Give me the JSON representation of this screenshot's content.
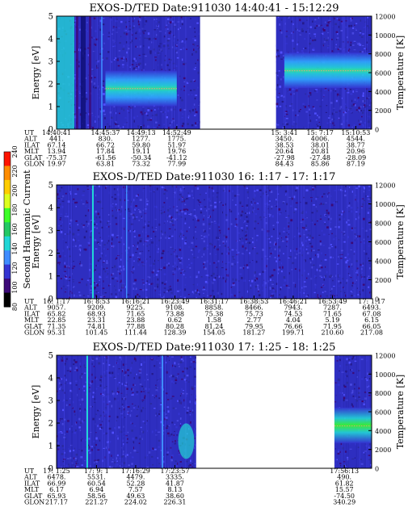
{
  "chart_data": [
    {
      "type": "heatmap",
      "title": "EXOS-D/TED   Date:911030  14:40:41 - 15:12:29",
      "ylabel": "Energy [eV]",
      "ylabel_right": "Temperature [K]",
      "ylim": [
        0,
        5
      ],
      "ylim_right": [
        0,
        12000
      ],
      "yticks": [
        "0",
        "1",
        "2",
        "3",
        "4",
        "5"
      ],
      "yticks_right": [
        "0",
        "2000",
        "4000",
        "6000",
        "8000",
        "10000",
        "12000"
      ],
      "row_labels": [
        "UT",
        "ALT",
        "ILAT",
        "MLT",
        "GLAT",
        "GLON"
      ],
      "columns": [
        [
          "14:40:41",
          "441.",
          "67.14",
          "13.94",
          "-75.37",
          "19.97"
        ],
        [
          "14:45:37",
          "830.",
          "66.72",
          "17.84",
          "-61.56",
          "63.81"
        ],
        [
          "14:49:13",
          "1277.",
          "59.80",
          "19.11",
          "-50.34",
          "73.32"
        ],
        [
          "14:52:49",
          "1775.",
          "51.97",
          "19.76",
          "-41.12",
          "77.99"
        ],
        [
          "15: 3:41",
          "3450.",
          "38.53",
          "20.64",
          "-27.98",
          "84.43"
        ],
        [
          "15: 7:17",
          "4006.",
          "38.01",
          "20.81",
          "-27.48",
          "85.86"
        ],
        [
          "15:10:53",
          "4544.",
          "38.77",
          "20.96",
          "-28.09",
          "87.19"
        ]
      ],
      "data_segments": [
        {
          "from": "14:40:41",
          "to": "14:55:10"
        },
        {
          "from": "15:02:50",
          "to": "15:12:29"
        }
      ],
      "bands": [
        {
          "from": "14:45:37",
          "to": "14:52:49",
          "energy": 1.8,
          "temperature": 4300
        },
        {
          "from": "15: 3:41",
          "to": "15:12:29",
          "energy": 2.6,
          "temperature": 6200
        }
      ]
    },
    {
      "type": "heatmap",
      "title": "EXOS-D/TED   Date:911030  16: 1:17 - 17: 1:17",
      "ylabel": "Energy [eV]",
      "ylabel_right": "Temperature [K]",
      "ylim": [
        0,
        5
      ],
      "ylim_right": [
        0,
        12000
      ],
      "yticks": [
        "0",
        "1",
        "2",
        "3",
        "4",
        "5"
      ],
      "yticks_right": [
        "0",
        "2000",
        "4000",
        "6000",
        "8000",
        "10000",
        "12000"
      ],
      "row_labels": [
        "UT",
        "ALT",
        "ILAT",
        "MLT",
        "GLAT",
        "GLON"
      ],
      "columns": [
        [
          "16: 1:17",
          "9057.",
          "65.82",
          "22.85",
          "71.35",
          "95.31"
        ],
        [
          "16: 8:53",
          "9209.",
          "68.93",
          "23.31",
          "74.81",
          "101.45"
        ],
        [
          "16:16:21",
          "9225.",
          "71.65",
          "23.88",
          "77.88",
          "111.44"
        ],
        [
          "16:23:49",
          "9108.",
          "73.88",
          "0.62",
          "80.28",
          "128.39"
        ],
        [
          "16:31:17",
          "8858.",
          "75.38",
          "1.58",
          "81.24",
          "154.05"
        ],
        [
          "16:38:53",
          "8466.",
          "75.73",
          "2.77",
          "79.95",
          "181.27"
        ],
        [
          "16:46:21",
          "7943.",
          "74.53",
          "4.04",
          "76.66",
          "199.71"
        ],
        [
          "16:53:49",
          "7287.",
          "71.65",
          "5.19",
          "71.95",
          "210.60"
        ],
        [
          "17: 1:17",
          "6493.",
          "67.08",
          "6.15",
          "66.05",
          "217.08"
        ]
      ],
      "data_segments": [
        {
          "from": "16: 1:17",
          "to": "17: 1:17"
        }
      ],
      "bands": []
    },
    {
      "type": "heatmap",
      "title": "EXOS-D/TED   Date:911030  17: 1:25 - 18: 1:25",
      "ylabel": "Energy [eV]",
      "ylabel_right": "Temperature [K]",
      "ylim": [
        0,
        5
      ],
      "ylim_right": [
        0,
        12000
      ],
      "yticks": [
        "0",
        "1",
        "2",
        "3",
        "4",
        "5"
      ],
      "yticks_right": [
        "0",
        "2000",
        "4000",
        "6000",
        "8000",
        "10000",
        "12000"
      ],
      "row_labels": [
        "UT",
        "ALT",
        "ILAT",
        "MLT",
        "GLAT",
        "GLON"
      ],
      "columns": [
        [
          "17: 1:25",
          "6478.",
          "66.99",
          "6.17",
          "65.93",
          "217.17"
        ],
        [
          "17: 9: 1",
          "5531.",
          "60.54",
          "6.94",
          "58.56",
          "221.27"
        ],
        [
          "17:16:29",
          "4479.",
          "52.28",
          "7.57",
          "49.63",
          "224.02"
        ],
        [
          "17:23:57",
          "3335.",
          "41.87",
          "8.13",
          "38.60",
          "226.31"
        ],
        [
          "17:56:13",
          "490.",
          "61.82",
          "15.57",
          "-74.50",
          "340.29"
        ]
      ],
      "data_segments": [
        {
          "from": "17: 1:25",
          "to": "17:28:00"
        },
        {
          "from": "17:54:20",
          "to": "18: 1:25"
        }
      ],
      "bands": [
        {
          "from": "17:54:20",
          "to": "18: 1:25",
          "energy": 1.9,
          "temperature": 4500
        }
      ]
    }
  ],
  "colorbar": {
    "label": "Second Harmonic Current",
    "ticks": [
      "80",
      "100",
      "120",
      "140",
      "160",
      "180",
      "200",
      "220",
      "240"
    ],
    "colors": [
      "#000000",
      "#3c0a78",
      "#3434d2",
      "#3f8cff",
      "#22d6d6",
      "#24c864",
      "#3cff28",
      "#dcff1e",
      "#ffcd00",
      "#ff8c00",
      "#ff1400"
    ]
  }
}
